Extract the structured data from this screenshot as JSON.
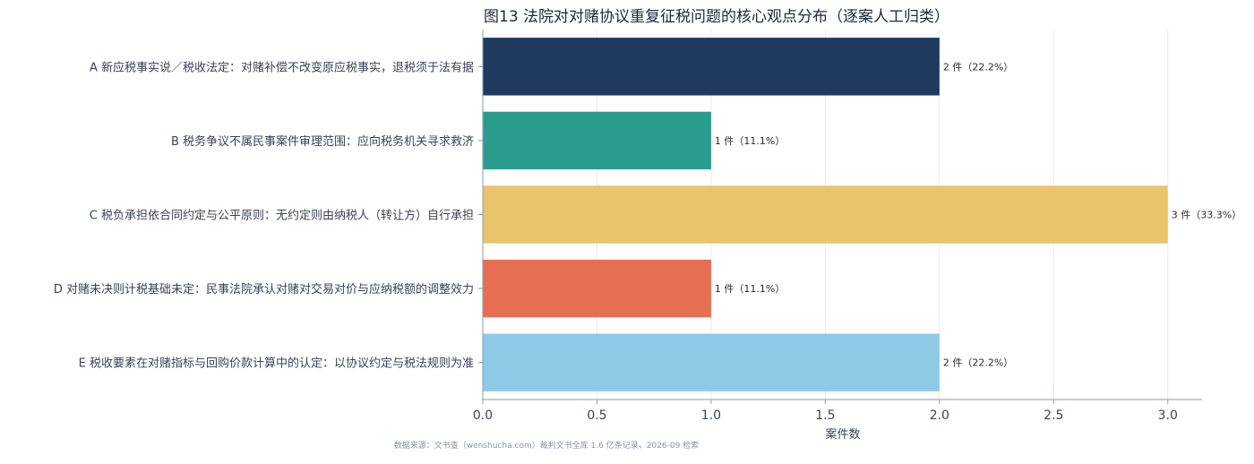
{
  "chart_data": {
    "type": "bar",
    "orientation": "horizontal",
    "title": "图13  法院对对赌协议重复征税问题的核心观点分布（逐案人工归类）",
    "xlabel": "案件数",
    "ylabel": "",
    "xlim": [
      0,
      3.15
    ],
    "xticks": [
      "0.0",
      "0.5",
      "1.0",
      "1.5",
      "2.0",
      "2.5",
      "3.0"
    ],
    "xtick_values": [
      0,
      0.5,
      1.0,
      1.5,
      2.0,
      2.5,
      3.0
    ],
    "grid": "vertical",
    "categories": [
      "A 新应税事实说／税收法定：对赌补偿不改变原应税事实，退税须于法有据",
      "B 税务争议不属民事案件审理范围：应向税务机关寻求救济",
      "C 税负承担依合同约定与公平原则：无约定则由纳税人（转让方）自行承担",
      "D 对赌未决则计税基础未定：民事法院承认对赌对交易对价与应纳税额的调整效力",
      "E 税收要素在对赌指标与回购价款计算中的认定：以协议约定与税法规则为准"
    ],
    "values": [
      2,
      1,
      3,
      1,
      2
    ],
    "data_labels": [
      "2 件（22.2%）",
      "1 件（11.1%）",
      "3 件（33.3%）",
      "1 件（11.1%）",
      "2 件（22.2%）"
    ],
    "colors": [
      "#1f3a5f",
      "#2a9d8f",
      "#e9c46a",
      "#e76f51",
      "#8ecae6"
    ],
    "source": "数据来源：文书查（wenshucha.com）裁判文书全库 1.6 亿条记录，2026-09 检索"
  }
}
